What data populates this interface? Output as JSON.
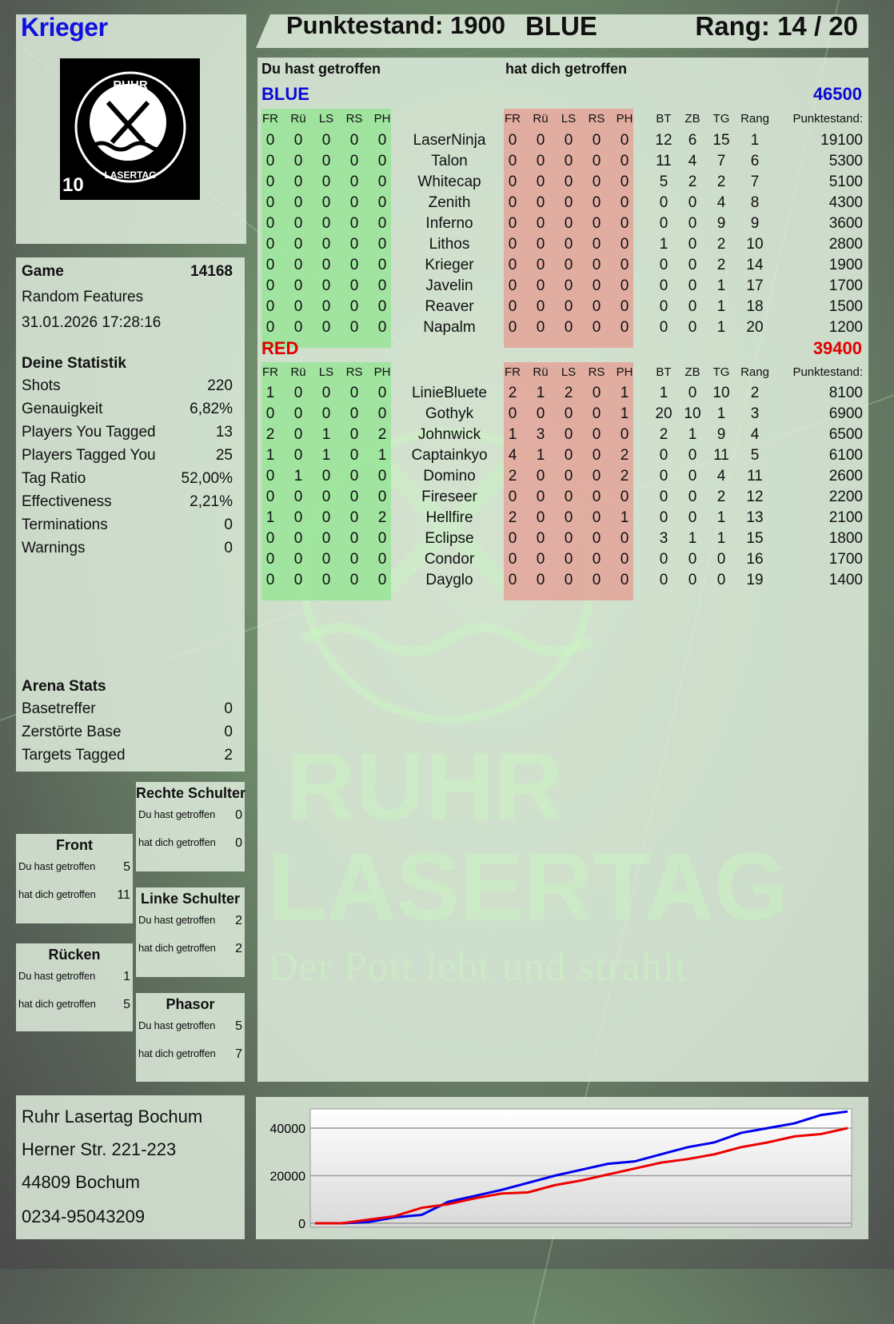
{
  "player": {
    "name": "Krieger",
    "logo_text": "RUHR LASERTAG",
    "logo_badge": "10"
  },
  "header": {
    "score": "Punktestand: 1900",
    "team": "BLUE",
    "rank": "Rang: 14 / 20"
  },
  "sections": {
    "you_hit": "Du hast getroffen",
    "hit_you": "hat dich getroffen"
  },
  "columns": {
    "zones": [
      "FR",
      "Rü",
      "LS",
      "RS",
      "PH"
    ],
    "stats": [
      "BT",
      "ZB",
      "TG",
      "Rang"
    ],
    "score": "Punktestand:"
  },
  "teams": [
    {
      "name": "BLUE",
      "total": "46500",
      "color": "#0a0ad8",
      "players": [
        {
          "name": "LaserNinja",
          "you_hit": [
            0,
            0,
            0,
            0,
            0
          ],
          "hit_you": [
            0,
            0,
            0,
            0,
            0
          ],
          "bt": 12,
          "zb": 6,
          "tg": 15,
          "rang": 1,
          "score": 19100
        },
        {
          "name": "Talon",
          "you_hit": [
            0,
            0,
            0,
            0,
            0
          ],
          "hit_you": [
            0,
            0,
            0,
            0,
            0
          ],
          "bt": 11,
          "zb": 4,
          "tg": 7,
          "rang": 6,
          "score": 5300
        },
        {
          "name": "Whitecap",
          "you_hit": [
            0,
            0,
            0,
            0,
            0
          ],
          "hit_you": [
            0,
            0,
            0,
            0,
            0
          ],
          "bt": 5,
          "zb": 2,
          "tg": 2,
          "rang": 7,
          "score": 5100
        },
        {
          "name": "Zenith",
          "you_hit": [
            0,
            0,
            0,
            0,
            0
          ],
          "hit_you": [
            0,
            0,
            0,
            0,
            0
          ],
          "bt": 0,
          "zb": 0,
          "tg": 4,
          "rang": 8,
          "score": 4300
        },
        {
          "name": "Inferno",
          "you_hit": [
            0,
            0,
            0,
            0,
            0
          ],
          "hit_you": [
            0,
            0,
            0,
            0,
            0
          ],
          "bt": 0,
          "zb": 0,
          "tg": 9,
          "rang": 9,
          "score": 3600
        },
        {
          "name": "Lithos",
          "you_hit": [
            0,
            0,
            0,
            0,
            0
          ],
          "hit_you": [
            0,
            0,
            0,
            0,
            0
          ],
          "bt": 1,
          "zb": 0,
          "tg": 2,
          "rang": 10,
          "score": 2800
        },
        {
          "name": "Krieger",
          "you_hit": [
            0,
            0,
            0,
            0,
            0
          ],
          "hit_you": [
            0,
            0,
            0,
            0,
            0
          ],
          "bt": 0,
          "zb": 0,
          "tg": 2,
          "rang": 14,
          "score": 1900
        },
        {
          "name": "Javelin",
          "you_hit": [
            0,
            0,
            0,
            0,
            0
          ],
          "hit_you": [
            0,
            0,
            0,
            0,
            0
          ],
          "bt": 0,
          "zb": 0,
          "tg": 1,
          "rang": 17,
          "score": 1700
        },
        {
          "name": "Reaver",
          "you_hit": [
            0,
            0,
            0,
            0,
            0
          ],
          "hit_you": [
            0,
            0,
            0,
            0,
            0
          ],
          "bt": 0,
          "zb": 0,
          "tg": 1,
          "rang": 18,
          "score": 1500
        },
        {
          "name": "Napalm",
          "you_hit": [
            0,
            0,
            0,
            0,
            0
          ],
          "hit_you": [
            0,
            0,
            0,
            0,
            0
          ],
          "bt": 0,
          "zb": 0,
          "tg": 1,
          "rang": 20,
          "score": 1200
        }
      ]
    },
    {
      "name": "RED",
      "total": "39400",
      "color": "#e00000",
      "players": [
        {
          "name": "LinieBluete",
          "you_hit": [
            1,
            0,
            0,
            0,
            0
          ],
          "hit_you": [
            2,
            1,
            2,
            0,
            1
          ],
          "bt": 1,
          "zb": 0,
          "tg": 10,
          "rang": 2,
          "score": 8100
        },
        {
          "name": "Gothyk",
          "you_hit": [
            0,
            0,
            0,
            0,
            0
          ],
          "hit_you": [
            0,
            0,
            0,
            0,
            1
          ],
          "bt": 20,
          "zb": 10,
          "tg": 1,
          "rang": 3,
          "score": 6900
        },
        {
          "name": "Johnwick",
          "you_hit": [
            2,
            0,
            1,
            0,
            2
          ],
          "hit_you": [
            1,
            3,
            0,
            0,
            0
          ],
          "bt": 2,
          "zb": 1,
          "tg": 9,
          "rang": 4,
          "score": 6500
        },
        {
          "name": "Captainkyo",
          "you_hit": [
            1,
            0,
            1,
            0,
            1
          ],
          "hit_you": [
            4,
            1,
            0,
            0,
            2
          ],
          "bt": 0,
          "zb": 0,
          "tg": 11,
          "rang": 5,
          "score": 6100
        },
        {
          "name": "Domino",
          "you_hit": [
            0,
            1,
            0,
            0,
            0
          ],
          "hit_you": [
            2,
            0,
            0,
            0,
            2
          ],
          "bt": 0,
          "zb": 0,
          "tg": 4,
          "rang": 11,
          "score": 2600
        },
        {
          "name": "Fireseer",
          "you_hit": [
            0,
            0,
            0,
            0,
            0
          ],
          "hit_you": [
            0,
            0,
            0,
            0,
            0
          ],
          "bt": 0,
          "zb": 0,
          "tg": 2,
          "rang": 12,
          "score": 2200
        },
        {
          "name": "Hellfire",
          "you_hit": [
            1,
            0,
            0,
            0,
            2
          ],
          "hit_you": [
            2,
            0,
            0,
            0,
            1
          ],
          "bt": 0,
          "zb": 0,
          "tg": 1,
          "rang": 13,
          "score": 2100
        },
        {
          "name": "Eclipse",
          "you_hit": [
            0,
            0,
            0,
            0,
            0
          ],
          "hit_you": [
            0,
            0,
            0,
            0,
            0
          ],
          "bt": 3,
          "zb": 1,
          "tg": 1,
          "rang": 15,
          "score": 1800
        },
        {
          "name": "Condor",
          "you_hit": [
            0,
            0,
            0,
            0,
            0
          ],
          "hit_you": [
            0,
            0,
            0,
            0,
            0
          ],
          "bt": 0,
          "zb": 0,
          "tg": 0,
          "rang": 16,
          "score": 1700
        },
        {
          "name": "Dayglo",
          "you_hit": [
            0,
            0,
            0,
            0,
            0
          ],
          "hit_you": [
            0,
            0,
            0,
            0,
            0
          ],
          "bt": 0,
          "zb": 0,
          "tg": 0,
          "rang": 19,
          "score": 1400
        }
      ]
    }
  ],
  "game": {
    "label": "Game",
    "id": "14168",
    "mode": "Random Features",
    "datetime": "31.01.2026 17:28:16"
  },
  "stats": {
    "title": "Deine Statistik",
    "items": [
      {
        "label": "Shots",
        "value": "220"
      },
      {
        "label": "Genauigkeit",
        "value": "6,82%"
      },
      {
        "label": "Players You Tagged",
        "value": "13"
      },
      {
        "label": "Players Tagged You",
        "value": "25"
      },
      {
        "label": "Tag Ratio",
        "value": "52,00%"
      },
      {
        "label": "Effectiveness",
        "value": "2,21%"
      },
      {
        "label": "Terminations",
        "value": "0"
      },
      {
        "label": "Warnings",
        "value": "0"
      }
    ]
  },
  "arena": {
    "title": "Arena Stats",
    "items": [
      {
        "label": "Basetreffer",
        "value": "0"
      },
      {
        "label": "Zerstörte Base",
        "value": "0"
      },
      {
        "label": "Targets Tagged",
        "value": "2"
      }
    ]
  },
  "zones": {
    "front": {
      "title": "Front",
      "you_hit_label": "Du hast getroffen",
      "you_hit": "5",
      "hit_you_label": "hat dich getroffen",
      "hit_you": "11"
    },
    "back": {
      "title": "Rücken",
      "you_hit_label": "Du hast getroffen",
      "you_hit": "1",
      "hit_you_label": "hat dich getroffen",
      "hit_you": "5"
    },
    "right_shoulder": {
      "title": "Rechte Schulter",
      "you_hit_label": "Du hast getroffen",
      "you_hit": "0",
      "hit_you_label": "hat dich getroffen",
      "hit_you": "0"
    },
    "left_shoulder": {
      "title": "Linke Schulter",
      "you_hit_label": "Du hast getroffen",
      "you_hit": "2",
      "hit_you_label": "hat dich getroffen",
      "hit_you": "2"
    },
    "phasor": {
      "title": "Phasor",
      "you_hit_label": "Du hast getroffen",
      "you_hit": "5",
      "hit_you_label": "hat dich getroffen",
      "hit_you": "7"
    }
  },
  "address": {
    "name": "Ruhr Lasertag Bochum",
    "street": "Herner Str. 221-223",
    "city": "44809 Bochum",
    "phone": "0234-95043209"
  },
  "watermark": {
    "line1": "RUHR",
    "line2": "LASERTAG",
    "slogan": "Der Pott lebt und strahlt"
  },
  "chart_data": {
    "type": "line",
    "ylim": [
      0,
      48000
    ],
    "yticks": [
      "0",
      "20000",
      "40000"
    ],
    "grid": true,
    "x": [
      0,
      1,
      2,
      3,
      4,
      5,
      6,
      7,
      8,
      9,
      10,
      11,
      12,
      13,
      14,
      15,
      16,
      17,
      18,
      19,
      20
    ],
    "series": [
      {
        "color": "#0000ee",
        "values": [
          0,
          0,
          500,
          2500,
          3500,
          9000,
          11500,
          14000,
          17000,
          20000,
          22500,
          25000,
          26000,
          29000,
          32000,
          34000,
          38000,
          40000,
          42000,
          45500,
          47000
        ]
      },
      {
        "color": "#ee0000",
        "values": [
          0,
          0,
          1500,
          3000,
          6500,
          8000,
          10500,
          12500,
          13000,
          16000,
          18000,
          20500,
          23000,
          25500,
          27000,
          29000,
          32000,
          34000,
          36500,
          37500,
          40000
        ]
      }
    ]
  }
}
